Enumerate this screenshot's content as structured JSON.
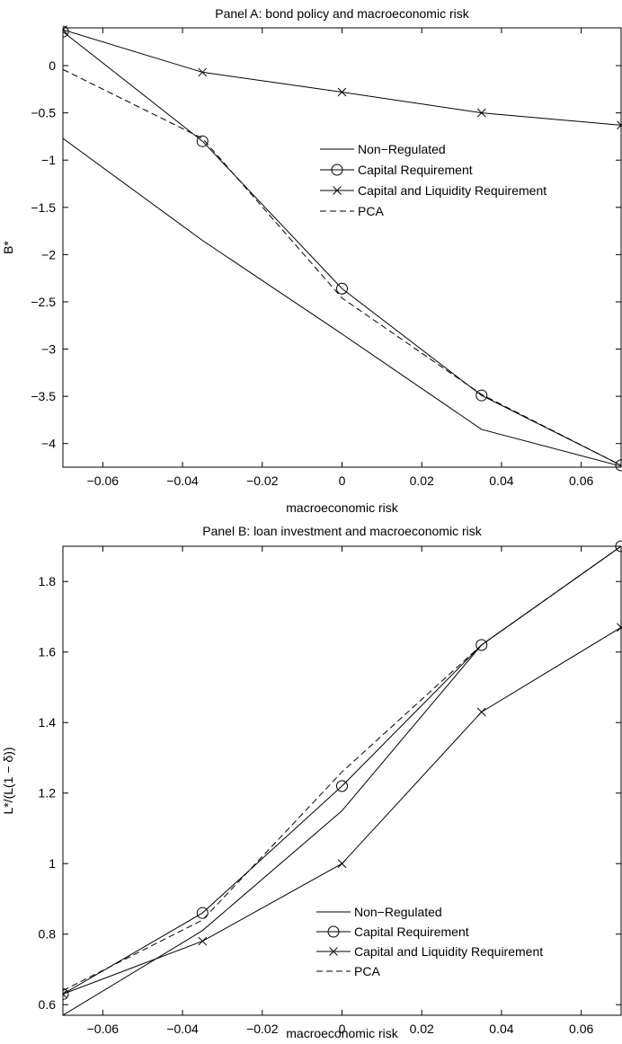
{
  "chart_data": [
    {
      "type": "line",
      "title": "Panel A: bond policy and macroeconomic risk",
      "xlabel": "macroeconomic risk",
      "ylabel": "B*",
      "xlim": [
        -0.07,
        0.07
      ],
      "ylim": [
        -4.25,
        0.4
      ],
      "x": [
        -0.07,
        -0.035,
        0,
        0.035,
        0.07
      ],
      "xticks": [
        -0.06,
        -0.04,
        -0.02,
        0,
        0.02,
        0.04,
        0.06
      ],
      "xtick_labels": [
        "−0.06",
        "−0.04",
        "−0.02",
        "0",
        "0.02",
        "0.04",
        "0.06"
      ],
      "yticks": [
        0,
        -0.5,
        -1,
        -1.5,
        -2,
        -2.5,
        -3,
        -3.5,
        -4
      ],
      "ytick_labels": [
        "0",
        "−0.5",
        "−1",
        "−1.5",
        "−2",
        "−2.5",
        "−3",
        "−3.5",
        "−4"
      ],
      "grid": false,
      "legend_position": "center-right",
      "series": [
        {
          "name": "Non−Regulated",
          "style": "solid",
          "marker": "none",
          "values": [
            -0.77,
            -1.85,
            -2.84,
            -3.85,
            -4.24
          ]
        },
        {
          "name": "Capital Requirement",
          "style": "solid",
          "marker": "circle",
          "values": [
            0.36,
            -0.8,
            -2.36,
            -3.49,
            -4.23
          ]
        },
        {
          "name": "Capital and Liquidity Requirement",
          "style": "solid",
          "marker": "x",
          "values": [
            0.38,
            -0.07,
            -0.28,
            -0.5,
            -0.63
          ]
        },
        {
          "name": "PCA",
          "style": "dashed",
          "marker": "none",
          "values": [
            -0.04,
            -0.77,
            -2.46,
            -3.48,
            -4.23
          ]
        }
      ]
    },
    {
      "type": "line",
      "title": "Panel B: loan investment and macroeconomic risk",
      "xlabel": "macroeconomic risk",
      "ylabel": "L*/(L(1 − δ))",
      "xlim": [
        -0.07,
        0.07
      ],
      "ylim": [
        0.57,
        1.9
      ],
      "x": [
        -0.07,
        -0.035,
        0,
        0.035,
        0.07
      ],
      "xticks": [
        -0.06,
        -0.04,
        -0.02,
        0,
        0.02,
        0.04,
        0.06
      ],
      "xtick_labels": [
        "−0.06",
        "−0.04",
        "−0.02",
        "0",
        "0.02",
        "0.04",
        "0.06"
      ],
      "yticks": [
        0.6,
        0.8,
        1,
        1.2,
        1.4,
        1.6,
        1.8
      ],
      "ytick_labels": [
        "0.6",
        "0.8",
        "1",
        "1.2",
        "1.4",
        "1.6",
        "1.8"
      ],
      "grid": false,
      "legend_position": "bottom-right",
      "series": [
        {
          "name": "Non−Regulated",
          "style": "solid",
          "marker": "none",
          "values": [
            0.57,
            0.81,
            1.15,
            1.62,
            1.9
          ]
        },
        {
          "name": "Capital Requirement",
          "style": "solid",
          "marker": "circle",
          "values": [
            0.63,
            0.86,
            1.22,
            1.62,
            1.9
          ]
        },
        {
          "name": "Capital and Liquidity Requirement",
          "style": "solid",
          "marker": "x",
          "values": [
            0.63,
            0.78,
            1.0,
            1.43,
            1.67
          ]
        },
        {
          "name": "PCA",
          "style": "dashed",
          "marker": "none",
          "values": [
            0.64,
            0.84,
            1.26,
            1.62,
            1.9
          ]
        }
      ]
    }
  ]
}
